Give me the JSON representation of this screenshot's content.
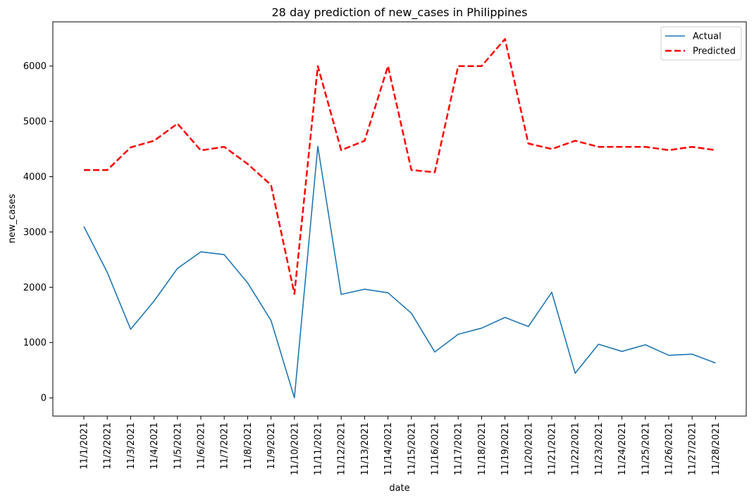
{
  "chart_data": {
    "type": "line",
    "title": "28 day prediction of new_cases in Philippines",
    "xlabel": "date",
    "ylabel": "new_cases",
    "categories": [
      "11/1/2021",
      "11/2/2021",
      "11/3/2021",
      "11/4/2021",
      "11/5/2021",
      "11/6/2021",
      "11/7/2021",
      "11/8/2021",
      "11/9/2021",
      "11/10/2021",
      "11/11/2021",
      "11/12/2021",
      "11/13/2021",
      "11/14/2021",
      "11/15/2021",
      "11/16/2021",
      "11/17/2021",
      "11/18/2021",
      "11/19/2021",
      "11/20/2021",
      "11/21/2021",
      "11/22/2021",
      "11/23/2021",
      "11/24/2021",
      "11/25/2021",
      "11/26/2021",
      "11/27/2021",
      "11/28/2021"
    ],
    "ylim": [
      -330,
      6800
    ],
    "yticks": [
      0,
      1000,
      2000,
      3000,
      4000,
      5000,
      6000
    ],
    "grid": false,
    "legend_position": "top-right",
    "series": [
      {
        "name": "Actual",
        "color": "#1f77b4",
        "style": "solid",
        "values": [
          3100,
          2270,
          1240,
          1750,
          2340,
          2640,
          2590,
          2080,
          1400,
          0,
          4550,
          1870,
          1965,
          1900,
          1530,
          830,
          1150,
          1260,
          1455,
          1290,
          1910,
          445,
          970,
          840,
          960,
          770,
          790,
          630
        ]
      },
      {
        "name": "Predicted",
        "color": "#ff0000",
        "style": "dashed",
        "values": [
          4120,
          4120,
          4530,
          4650,
          4960,
          4475,
          4540,
          4230,
          3850,
          1880,
          6000,
          4480,
          4650,
          6000,
          4120,
          4080,
          6000,
          6000,
          6490,
          4600,
          4500,
          4650,
          4540,
          4540,
          4540,
          4480,
          4540,
          4480
        ]
      }
    ]
  }
}
